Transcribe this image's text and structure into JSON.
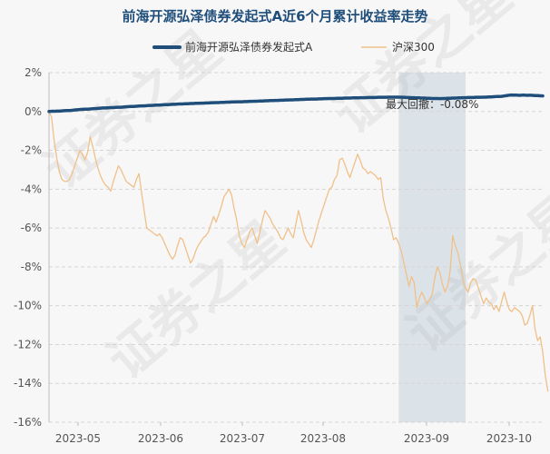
{
  "colors": {
    "fund": "#1f4e7a",
    "index": "#f0c08a",
    "shade": "#a9bccb",
    "title": "#1f4e7a",
    "grid": "#d5d5d5",
    "background": "#f7f7f7"
  },
  "watermark": {
    "text": "证券之星"
  },
  "chart_data": {
    "type": "line",
    "title": "前海开源弘泽债券发起式A近6个月累计收益率走势",
    "xlabel": "",
    "ylabel": "",
    "ylim": [
      -16,
      2
    ],
    "ytick_labels": [
      "2%",
      "0%",
      "-2%",
      "-4%",
      "-6%",
      "-8%",
      "-10%",
      "-12%",
      "-14%",
      "-16%"
    ],
    "xtick_labels": [
      "2023-05",
      "2023-06",
      "2023-07",
      "2023-08",
      "2023-09",
      "2023-10"
    ],
    "grid": true,
    "legend_position": "top-center",
    "annotation": {
      "text": "最大回撤：-0.08%",
      "shaded_range": [
        136,
        162
      ]
    },
    "series": [
      {
        "name": "前海开源弘泽债券发起式A",
        "values": [
          0.0,
          0.01,
          0.01,
          0.02,
          0.02,
          0.03,
          0.04,
          0.05,
          0.05,
          0.06,
          0.08,
          0.09,
          0.1,
          0.11,
          0.12,
          0.12,
          0.13,
          0.14,
          0.15,
          0.16,
          0.17,
          0.18,
          0.18,
          0.19,
          0.2,
          0.2,
          0.21,
          0.22,
          0.22,
          0.23,
          0.24,
          0.25,
          0.26,
          0.26,
          0.27,
          0.28,
          0.29,
          0.29,
          0.3,
          0.31,
          0.31,
          0.32,
          0.33,
          0.33,
          0.34,
          0.35,
          0.35,
          0.36,
          0.37,
          0.37,
          0.38,
          0.39,
          0.39,
          0.4,
          0.4,
          0.41,
          0.41,
          0.42,
          0.42,
          0.43,
          0.43,
          0.44,
          0.44,
          0.45,
          0.45,
          0.46,
          0.46,
          0.47,
          0.47,
          0.48,
          0.48,
          0.49,
          0.49,
          0.5,
          0.5,
          0.5,
          0.51,
          0.51,
          0.52,
          0.52,
          0.53,
          0.53,
          0.54,
          0.54,
          0.55,
          0.55,
          0.56,
          0.56,
          0.57,
          0.57,
          0.58,
          0.58,
          0.59,
          0.59,
          0.6,
          0.6,
          0.61,
          0.61,
          0.62,
          0.62,
          0.63,
          0.63,
          0.64,
          0.64,
          0.64,
          0.65,
          0.65,
          0.66,
          0.66,
          0.67,
          0.67,
          0.67,
          0.68,
          0.68,
          0.68,
          0.69,
          0.69,
          0.69,
          0.7,
          0.7,
          0.7,
          0.71,
          0.71,
          0.71,
          0.72,
          0.72,
          0.72,
          0.72,
          0.73,
          0.73,
          0.73,
          0.73,
          0.74,
          0.74,
          0.74,
          0.74,
          0.74,
          0.73,
          0.73,
          0.72,
          0.72,
          0.71,
          0.71,
          0.7,
          0.7,
          0.69,
          0.69,
          0.68,
          0.68,
          0.67,
          0.67,
          0.67,
          0.66,
          0.67,
          0.67,
          0.68,
          0.68,
          0.69,
          0.69,
          0.7,
          0.7,
          0.71,
          0.71,
          0.72,
          0.72,
          0.72,
          0.73,
          0.73,
          0.73,
          0.74,
          0.74,
          0.75,
          0.75,
          0.76,
          0.77,
          0.77,
          0.78,
          0.8,
          0.82,
          0.84,
          0.85,
          0.84,
          0.84,
          0.83,
          0.84,
          0.84,
          0.83,
          0.84,
          0.83,
          0.82,
          0.82,
          0.81,
          0.8
        ]
      },
      {
        "name": "沪深300",
        "values": [
          0.0,
          -0.3,
          -1.5,
          -2.4,
          -3.1,
          -3.5,
          -3.6,
          -3.6,
          -3.5,
          -3.2,
          -2.8,
          -2.4,
          -2.0,
          -2.2,
          -2.5,
          -2.1,
          -1.3,
          -1.8,
          -2.4,
          -2.9,
          -3.3,
          -3.6,
          -3.8,
          -3.9,
          -4.1,
          -3.6,
          -3.2,
          -2.8,
          -3.0,
          -3.3,
          -3.6,
          -3.7,
          -3.8,
          -3.9,
          -3.5,
          -3.2,
          -4.2,
          -5.1,
          -6.0,
          -6.1,
          -6.2,
          -6.3,
          -6.4,
          -6.3,
          -6.5,
          -6.8,
          -7.1,
          -7.4,
          -7.6,
          -7.4,
          -6.9,
          -6.5,
          -6.6,
          -7.0,
          -7.4,
          -7.8,
          -7.6,
          -7.2,
          -6.9,
          -6.7,
          -6.5,
          -6.4,
          -6.2,
          -5.8,
          -5.4,
          -5.7,
          -5.3,
          -4.9,
          -4.4,
          -4.2,
          -4.0,
          -4.3,
          -5.0,
          -5.6,
          -6.4,
          -6.8,
          -7.0,
          -6.6,
          -6.2,
          -6.0,
          -6.4,
          -6.8,
          -6.2,
          -5.6,
          -5.1,
          -5.3,
          -5.5,
          -5.8,
          -6.0,
          -6.2,
          -6.5,
          -6.6,
          -6.3,
          -6.0,
          -6.3,
          -6.5,
          -5.8,
          -5.1,
          -5.6,
          -6.2,
          -6.6,
          -6.8,
          -7.0,
          -6.6,
          -6.1,
          -5.6,
          -5.2,
          -4.8,
          -4.4,
          -4.0,
          -3.9,
          -3.5,
          -3.3,
          -2.5,
          -2.4,
          -2.7,
          -3.1,
          -3.4,
          -3.0,
          -2.6,
          -2.2,
          -2.5,
          -2.9,
          -3.0,
          -3.2,
          -3.1,
          -3.2,
          -3.3,
          -3.5,
          -3.4,
          -4.5,
          -5.1,
          -5.5,
          -6.0,
          -6.6,
          -6.5,
          -6.8,
          -7.2,
          -7.8,
          -8.4,
          -9.0,
          -8.5,
          -8.8,
          -10.1,
          -9.6,
          -9.3,
          -9.6,
          -9.9,
          -9.7,
          -9.4,
          -8.6,
          -8.0,
          -8.3,
          -8.9,
          -9.3,
          -9.0,
          -8.2,
          -6.4,
          -6.9,
          -7.3,
          -7.9,
          -8.7,
          -9.1,
          -9.3,
          -8.8,
          -8.6,
          -8.7,
          -9.1,
          -9.5,
          -9.9,
          -9.6,
          -9.8,
          -9.9,
          -10.2,
          -10.0,
          -10.3,
          -9.8,
          -9.3,
          -9.8,
          -10.2,
          -10.3,
          -10.1,
          -10.2,
          -10.3,
          -10.5,
          -11.0,
          -10.9,
          -10.5,
          -10.0,
          -11.2,
          -11.8,
          -11.6,
          -12.4,
          -13.6,
          -14.4
        ]
      }
    ]
  }
}
